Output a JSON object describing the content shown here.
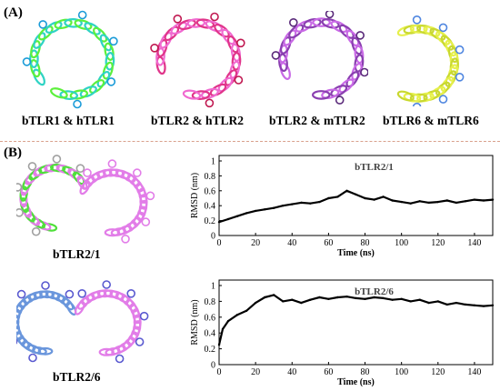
{
  "panels": {
    "a_label": "(A)",
    "b_label": "(B)"
  },
  "structures": [
    {
      "label": "bTLR1 & hTLR1",
      "colors": [
        "#2fd3c4",
        "#5cf03c",
        "#1a9bd8"
      ]
    },
    {
      "label": "bTLR2 & hTLR2",
      "colors": [
        "#e0358a",
        "#f06ad0",
        "#c01850"
      ]
    },
    {
      "label": "bTLR2 & mTLR2",
      "colors": [
        "#c96ae6",
        "#8a3fb0",
        "#5a2a7a"
      ]
    },
    {
      "label": "bTLR6 & mTLR6",
      "colors": [
        "#e6f04c",
        "#c9d830",
        "#4f86e0"
      ]
    },
    {
      "label": "bTLR2/1",
      "colors": [
        "#4fe03a",
        "#e27de8",
        "#a0a0a0"
      ]
    },
    {
      "label": "bTLR2/6",
      "colors": [
        "#6a96dc",
        "#e27de8",
        "#5a5ad0"
      ]
    }
  ],
  "chart_data": [
    {
      "type": "line",
      "title": "bTLR2/1",
      "xlabel": "Time (ns)",
      "ylabel": "RMSD (nm)",
      "xlim": [
        0,
        150
      ],
      "ylim": [
        0,
        1
      ],
      "xticks": [
        0,
        20,
        40,
        60,
        80,
        100,
        120,
        140
      ],
      "yticks": [
        0,
        0.2,
        0.4,
        0.6,
        0.8,
        1
      ],
      "ytick_labels": [
        "0",
        "0.2",
        "0.4",
        "0.6",
        "0.8",
        "1"
      ],
      "series": [
        {
          "x": [
            0,
            5,
            10,
            15,
            20,
            25,
            30,
            35,
            40,
            45,
            50,
            55,
            60,
            65,
            70,
            75,
            80,
            85,
            90,
            95,
            100,
            105,
            110,
            115,
            120,
            125,
            130,
            135,
            140,
            145,
            150
          ],
          "y": [
            0.18,
            0.22,
            0.26,
            0.3,
            0.33,
            0.35,
            0.37,
            0.4,
            0.42,
            0.44,
            0.43,
            0.45,
            0.5,
            0.52,
            0.6,
            0.55,
            0.5,
            0.48,
            0.52,
            0.47,
            0.45,
            0.43,
            0.46,
            0.44,
            0.45,
            0.47,
            0.44,
            0.46,
            0.48,
            0.47,
            0.48
          ]
        }
      ]
    },
    {
      "type": "line",
      "title": "bTLR2/6",
      "xlabel": "Time (ns)",
      "ylabel": "RMSD (nm)",
      "xlim": [
        0,
        150
      ],
      "ylim": [
        0,
        1
      ],
      "xticks": [
        0,
        20,
        40,
        60,
        80,
        100,
        120,
        140
      ],
      "yticks": [
        0,
        0.2,
        0.4,
        0.6,
        0.8,
        1
      ],
      "ytick_labels": [
        "0",
        "0.2",
        "0.4",
        "0.6",
        "0.8",
        "1"
      ],
      "series": [
        {
          "x": [
            0,
            2,
            5,
            10,
            15,
            20,
            25,
            30,
            35,
            40,
            45,
            50,
            55,
            60,
            65,
            70,
            75,
            80,
            85,
            90,
            95,
            100,
            105,
            110,
            115,
            120,
            125,
            130,
            135,
            140,
            145,
            150
          ],
          "y": [
            0.25,
            0.45,
            0.55,
            0.63,
            0.68,
            0.78,
            0.85,
            0.88,
            0.8,
            0.82,
            0.78,
            0.82,
            0.85,
            0.83,
            0.85,
            0.86,
            0.84,
            0.83,
            0.85,
            0.84,
            0.82,
            0.83,
            0.8,
            0.82,
            0.78,
            0.8,
            0.76,
            0.78,
            0.76,
            0.75,
            0.74,
            0.75
          ]
        }
      ]
    }
  ]
}
